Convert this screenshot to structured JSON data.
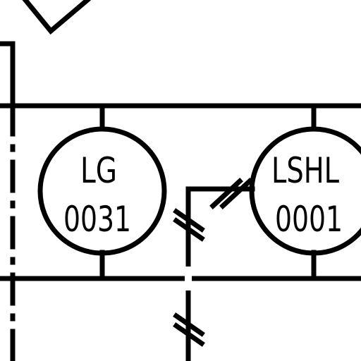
{
  "instruments": [
    {
      "letters": "LG",
      "number": "0031"
    },
    {
      "letters": "LSHL",
      "number": "0001"
    }
  ],
  "colors": {
    "line": "#000000",
    "background": "#ffffff"
  }
}
